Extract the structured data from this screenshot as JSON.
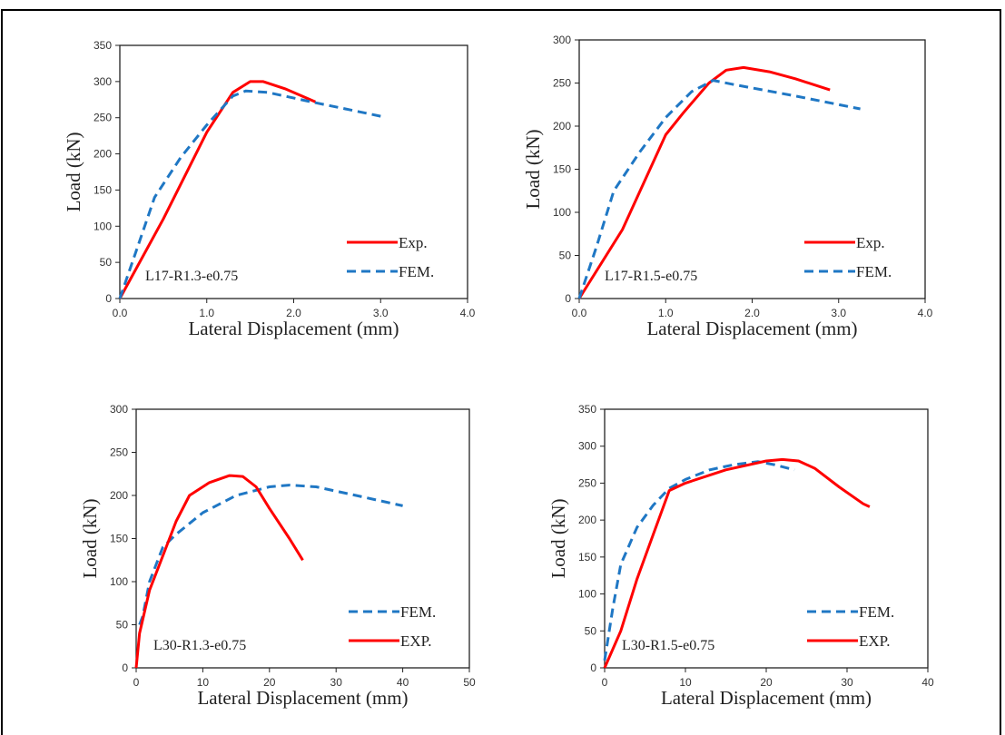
{
  "chart_data": [
    {
      "type": "line",
      "annotation": "L17-R1.3-e0.75",
      "xlabel": "Lateral Displacement (mm)",
      "ylabel": "Load (kN)",
      "xlim": [
        0,
        4
      ],
      "ylim": [
        0,
        350
      ],
      "xticks": [
        "0.0",
        "1.0",
        "2.0",
        "3.0",
        "4.0"
      ],
      "yticks": [
        "0",
        "50",
        "100",
        "150",
        "200",
        "250",
        "300",
        "350"
      ],
      "grid": false,
      "legend_position": "bottom-right",
      "series": [
        {
          "name": "Exp.",
          "color": "#ff0000",
          "style": "solid",
          "x": [
            0,
            0.5,
            1.0,
            1.3,
            1.5,
            1.65,
            1.9,
            2.25
          ],
          "y": [
            0,
            110,
            230,
            285,
            300,
            300,
            290,
            272
          ]
        },
        {
          "name": "FEM.",
          "color": "#1f77c4",
          "style": "dashed",
          "x": [
            0,
            0.2,
            0.4,
            0.7,
            1.0,
            1.3,
            1.45,
            1.7,
            2.2,
            2.6,
            3.0
          ],
          "y": [
            0,
            70,
            140,
            195,
            240,
            280,
            287,
            285,
            272,
            262,
            252
          ]
        }
      ]
    },
    {
      "type": "line",
      "annotation": "L17-R1.5-e0.75",
      "xlabel": "Lateral Displacement (mm)",
      "ylabel": "Load (kN)",
      "xlim": [
        0,
        4
      ],
      "ylim": [
        0,
        300
      ],
      "xticks": [
        "0.0",
        "1.0",
        "2.0",
        "3.0",
        "4.0"
      ],
      "yticks": [
        "0",
        "50",
        "100",
        "150",
        "200",
        "250",
        "300"
      ],
      "grid": false,
      "legend_position": "bottom-right",
      "series": [
        {
          "name": "Exp.",
          "color": "#ff0000",
          "style": "solid",
          "x": [
            0,
            0.5,
            1.0,
            1.2,
            1.5,
            1.7,
            1.9,
            2.2,
            2.5,
            2.9
          ],
          "y": [
            0,
            80,
            190,
            215,
            250,
            265,
            268,
            263,
            255,
            242
          ]
        },
        {
          "name": "FEM.",
          "color": "#1f77c4",
          "style": "dashed",
          "x": [
            0,
            0.2,
            0.4,
            0.7,
            1.0,
            1.3,
            1.55,
            1.8,
            2.5,
            3.25
          ],
          "y": [
            0,
            60,
            125,
            170,
            210,
            240,
            253,
            248,
            235,
            220
          ]
        }
      ]
    },
    {
      "type": "line",
      "annotation": "L30-R1.3-e0.75",
      "xlabel": "Lateral Displacement (mm)",
      "ylabel": "Load (kN)",
      "xlim": [
        0,
        50
      ],
      "ylim": [
        0,
        300
      ],
      "xticks": [
        "0",
        "10",
        "20",
        "30",
        "40",
        "50"
      ],
      "yticks": [
        "0",
        "50",
        "100",
        "150",
        "200",
        "250",
        "300"
      ],
      "grid": false,
      "legend_position": "bottom-right",
      "series": [
        {
          "name": "FEM.",
          "color": "#1f77c4",
          "style": "dashed",
          "x": [
            0.5,
            1,
            2,
            4,
            6,
            10,
            15,
            20,
            23,
            27,
            33,
            40
          ],
          "y": [
            50,
            60,
            100,
            140,
            155,
            180,
            200,
            210,
            212,
            210,
            200,
            188
          ]
        },
        {
          "name": "EXP.",
          "color": "#ff0000",
          "style": "solid",
          "x": [
            0,
            0.5,
            2,
            4,
            6,
            8,
            11,
            14,
            16,
            18,
            20,
            23,
            25
          ],
          "y": [
            0,
            40,
            90,
            130,
            170,
            200,
            215,
            223,
            222,
            210,
            185,
            150,
            125
          ]
        }
      ]
    },
    {
      "type": "line",
      "annotation": "L30-R1.5-e0.75",
      "xlabel": "Lateral Displacement (mm)",
      "ylabel": "Load (kN)",
      "xlim": [
        0,
        40
      ],
      "ylim": [
        0,
        350
      ],
      "xticks": [
        "0",
        "10",
        "20",
        "30",
        "40"
      ],
      "yticks": [
        "0",
        "50",
        "100",
        "150",
        "200",
        "250",
        "300",
        "350"
      ],
      "grid": false,
      "legend_position": "bottom-right",
      "series": [
        {
          "name": "FEM.",
          "color": "#1f77c4",
          "style": "dashed",
          "x": [
            0,
            1,
            2,
            4,
            6,
            8,
            10,
            13,
            16,
            19,
            21,
            23.5
          ],
          "y": [
            10,
            80,
            140,
            190,
            220,
            243,
            255,
            268,
            275,
            279,
            275,
            268
          ]
        },
        {
          "name": "EXP.",
          "color": "#ff0000",
          "style": "solid",
          "x": [
            0,
            2,
            4,
            6,
            8,
            10,
            15,
            20,
            22,
            24,
            26,
            29,
            32,
            32.8
          ],
          "y": [
            0,
            50,
            120,
            180,
            240,
            250,
            268,
            280,
            282,
            280,
            270,
            245,
            222,
            218
          ]
        }
      ]
    }
  ]
}
